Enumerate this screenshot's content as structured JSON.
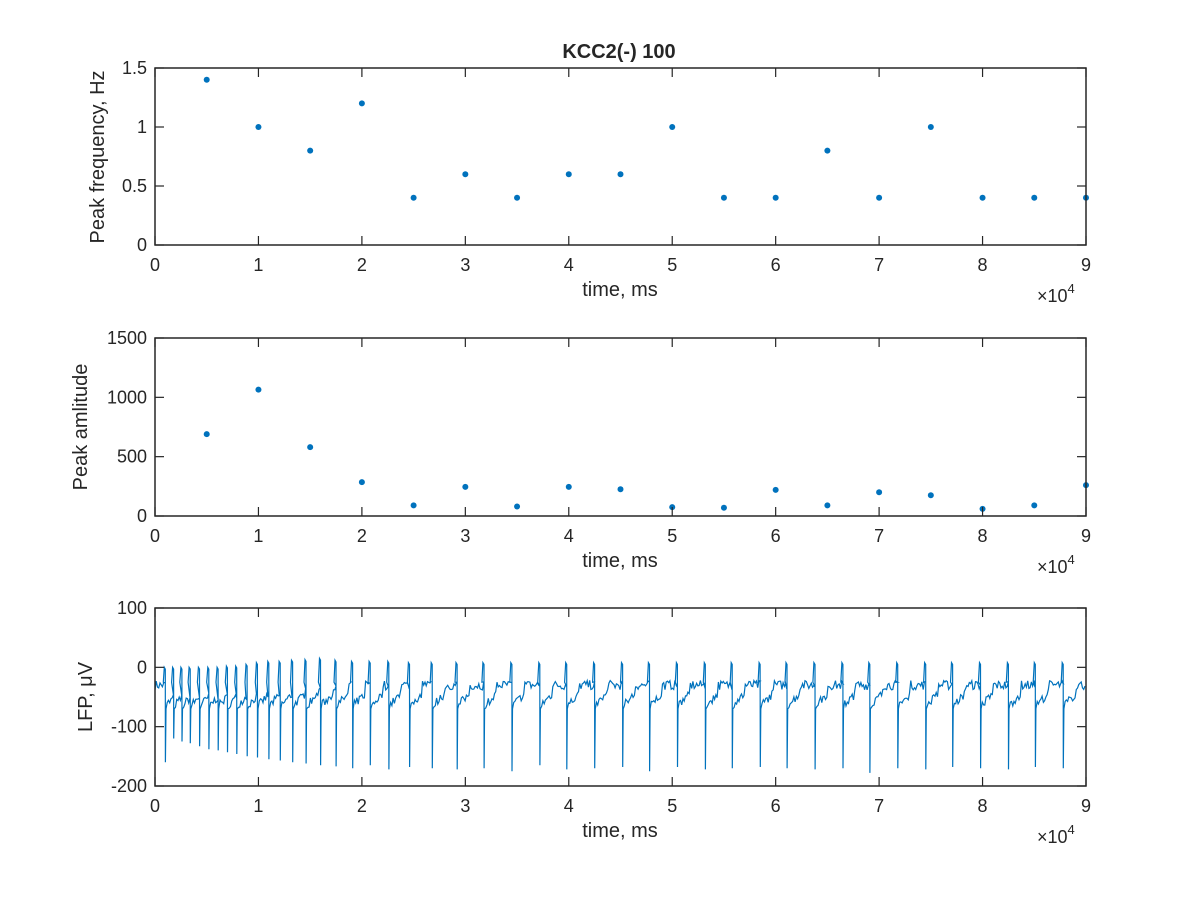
{
  "chart_data": [
    {
      "type": "scatter",
      "title": "KCC2(-) 100",
      "xlabel": "time, ms",
      "ylabel": "Peak frequency, Hz",
      "x_exponent_label": "×10",
      "x_exponent_power": "4",
      "x_scale": 10000,
      "xlim": [
        0,
        90000
      ],
      "ylim": [
        0,
        1.5
      ],
      "xticks": [
        0,
        10000,
        20000,
        30000,
        40000,
        50000,
        60000,
        70000,
        80000,
        90000
      ],
      "xtick_labels": [
        "0",
        "1",
        "2",
        "3",
        "4",
        "5",
        "6",
        "7",
        "8",
        "9"
      ],
      "yticks": [
        0,
        0.5,
        1,
        1.5
      ],
      "ytick_labels": [
        "0",
        "0.5",
        "1",
        "1.5"
      ],
      "grid": false,
      "color": "#0072BD",
      "x": [
        5000,
        10000,
        15000,
        20000,
        25000,
        30000,
        35000,
        40000,
        45000,
        50000,
        55000,
        60000,
        65000,
        70000,
        75000,
        80000,
        85000,
        90000
      ],
      "y": [
        1.4,
        1.0,
        0.8,
        1.2,
        0.4,
        0.6,
        0.4,
        0.6,
        0.6,
        1.0,
        0.4,
        0.4,
        0.8,
        0.4,
        1.0,
        0.4,
        0.4,
        0.4
      ]
    },
    {
      "type": "scatter",
      "title": "",
      "xlabel": "time, ms",
      "ylabel": "Peak amlitude",
      "x_exponent_label": "×10",
      "x_exponent_power": "4",
      "x_scale": 10000,
      "xlim": [
        0,
        90000
      ],
      "ylim": [
        0,
        1500
      ],
      "xticks": [
        0,
        10000,
        20000,
        30000,
        40000,
        50000,
        60000,
        70000,
        80000,
        90000
      ],
      "xtick_labels": [
        "0",
        "1",
        "2",
        "3",
        "4",
        "5",
        "6",
        "7",
        "8",
        "9"
      ],
      "yticks": [
        0,
        500,
        1000,
        1500
      ],
      "ytick_labels": [
        "0",
        "500",
        "1000",
        "1500"
      ],
      "grid": false,
      "color": "#0072BD",
      "x": [
        5000,
        10000,
        15000,
        20000,
        25000,
        30000,
        35000,
        40000,
        45000,
        50000,
        55000,
        60000,
        65000,
        70000,
        75000,
        80000,
        85000,
        90000
      ],
      "y": [
        690,
        1065,
        580,
        285,
        90,
        245,
        80,
        245,
        225,
        75,
        70,
        220,
        90,
        200,
        175,
        60,
        90,
        260
      ]
    },
    {
      "type": "line",
      "title": "",
      "xlabel": "time, ms",
      "ylabel": "LFP, μV",
      "x_exponent_label": "×10",
      "x_exponent_power": "4",
      "x_scale": 10000,
      "xlim": [
        0,
        90000
      ],
      "ylim": [
        -200,
        100
      ],
      "xticks": [
        0,
        10000,
        20000,
        30000,
        40000,
        50000,
        60000,
        70000,
        80000,
        90000
      ],
      "xtick_labels": [
        "0",
        "1",
        "2",
        "3",
        "4",
        "5",
        "6",
        "7",
        "8",
        "9"
      ],
      "yticks": [
        -200,
        -100,
        0,
        100
      ],
      "ytick_labels": [
        "-200",
        "-100",
        "0",
        "100"
      ],
      "grid": false,
      "color": "#0072BD",
      "description_series": {
        "baseline": -30,
        "event_times": [
          1000,
          1800,
          2600,
          3400,
          4300,
          5200,
          6100,
          7000,
          7900,
          8900,
          9900,
          11000,
          12100,
          13300,
          14600,
          16000,
          17500,
          19100,
          20800,
          22600,
          24600,
          26800,
          29200,
          31800,
          34500,
          37200,
          39800,
          42500,
          45200,
          47800,
          50500,
          53200,
          55800,
          58500,
          61100,
          63800,
          66500,
          69100,
          71800,
          74500,
          77100,
          79800,
          82500,
          85100,
          87800
        ],
        "trough_values": [
          -160,
          -120,
          -125,
          -128,
          -133,
          -138,
          -140,
          -143,
          -146,
          -150,
          -152,
          -155,
          -157,
          -160,
          -162,
          -165,
          -167,
          -170,
          -165,
          -172,
          -168,
          -170,
          -172,
          -170,
          -175,
          -165,
          -172,
          -170,
          -168,
          -175,
          -168,
          -172,
          -170,
          -168,
          -170,
          -172,
          -170,
          -178,
          -170,
          -172,
          -168,
          -170,
          -172,
          -168,
          -170
        ],
        "peak_values": [
          0,
          0,
          0,
          0,
          0,
          0,
          0,
          2,
          2,
          5,
          8,
          10,
          10,
          12,
          13,
          15,
          12,
          10,
          10,
          10,
          8,
          8,
          8,
          8,
          8,
          8,
          8,
          8,
          8,
          8,
          8,
          8,
          8,
          8,
          8,
          8,
          8,
          8,
          8,
          8,
          8,
          8,
          8,
          8,
          8
        ]
      }
    }
  ]
}
